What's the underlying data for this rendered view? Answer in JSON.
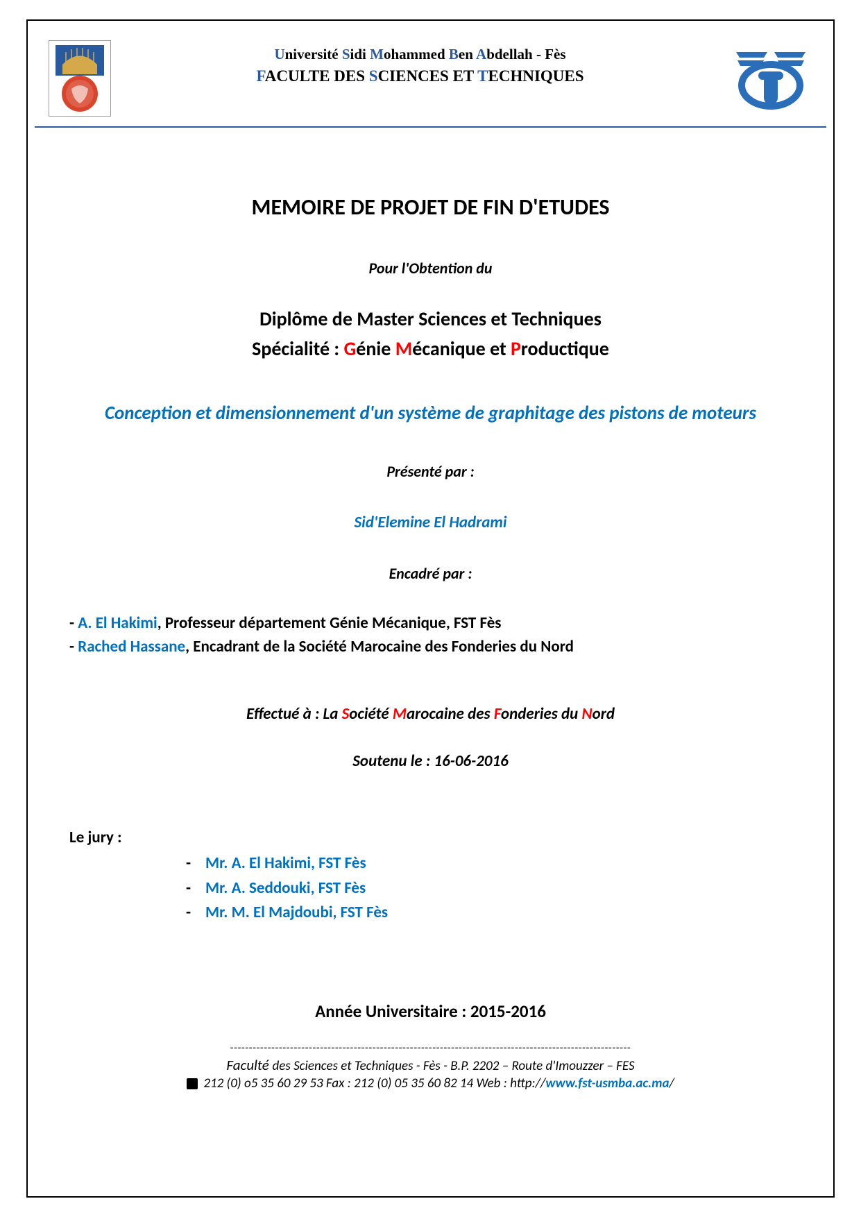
{
  "header": {
    "university_parts": [
      {
        "t": "U",
        "cls": "initial"
      },
      {
        "t": "niversité "
      },
      {
        "t": "S",
        "cls": "initial"
      },
      {
        "t": "idi "
      },
      {
        "t": "M",
        "cls": "initial"
      },
      {
        "t": "ohammed "
      },
      {
        "t": "B",
        "cls": "initial"
      },
      {
        "t": "en "
      },
      {
        "t": "A",
        "cls": "initial"
      },
      {
        "t": "bdellah - Fès"
      }
    ],
    "faculty_parts": [
      {
        "t": "F",
        "cls": "initial"
      },
      {
        "t": "ACULTE DES "
      },
      {
        "t": "S",
        "cls": "initial"
      },
      {
        "t": "CIENCES ET "
      },
      {
        "t": "T",
        "cls": "initial"
      },
      {
        "t": "ECHNIQUES"
      }
    ]
  },
  "title_main": "MEMOIRE DE PROJET DE FIN D'ETUDES",
  "obtention": "Pour l'Obtention du",
  "diplome": "Diplôme de Master Sciences et Techniques",
  "specialite_prefix": "Spécialité : ",
  "specialite_parts": [
    {
      "t": "G",
      "cls": "red"
    },
    {
      "t": "énie "
    },
    {
      "t": "M",
      "cls": "red"
    },
    {
      "t": "écanique et "
    },
    {
      "t": "P",
      "cls": "red"
    },
    {
      "t": "roductique"
    }
  ],
  "project_title": "Conception et dimensionnement d'un système de graphitage des pistons de moteurs",
  "presente": "Présenté par :",
  "author": "Sid'Elemine El Hadrami",
  "encadre": "Encadré par :",
  "advisors": [
    {
      "name": "A. El Hakimi",
      "rest": ", Professeur département Génie Mécanique, FST Fès"
    },
    {
      "name": "Rached Hassane",
      "rest": ", Encadrant de la Société  Marocaine des Fonderies du Nord"
    }
  ],
  "effectue_prefix": "Effectué à : La ",
  "effectue_parts": [
    {
      "t": "S",
      "cls": "red"
    },
    {
      "t": "ociété "
    },
    {
      "t": "M",
      "cls": "red"
    },
    {
      "t": "arocaine des "
    },
    {
      "t": "F",
      "cls": "red"
    },
    {
      "t": "onderies du "
    },
    {
      "t": "N",
      "cls": "red"
    },
    {
      "t": "ord"
    }
  ],
  "soutenu": "Soutenu le  :    16-06-2016",
  "jury_label": "Le jury :",
  "jury": [
    "Mr. A. El Hakimi,  FST Fès",
    "Mr. A. Seddouki,  FST Fès",
    "Mr. M. El Majdoubi,  FST Fès"
  ],
  "year": "Année Universitaire : 2015-2016",
  "footer": {
    "dashes": "-----------------------------------------------------------------------------------------------------------",
    "line1_fac": "Faculté ",
    "line1_rest": "des Sciences et Techniques -  Fès  - B.P. 2202 – Route d'Imouzzer – FES",
    "line2_pre": " 212 (0) o5 35 60 29 53  Fax : 212 (0) 05 35 60 82 14 Web : http://",
    "line2_url": "www.fst-usmba.ac.ma",
    "line2_post": "/"
  },
  "colors": {
    "blue": "#0070c0",
    "red": "#ff0000",
    "header_blue": "#2a5a9e"
  }
}
